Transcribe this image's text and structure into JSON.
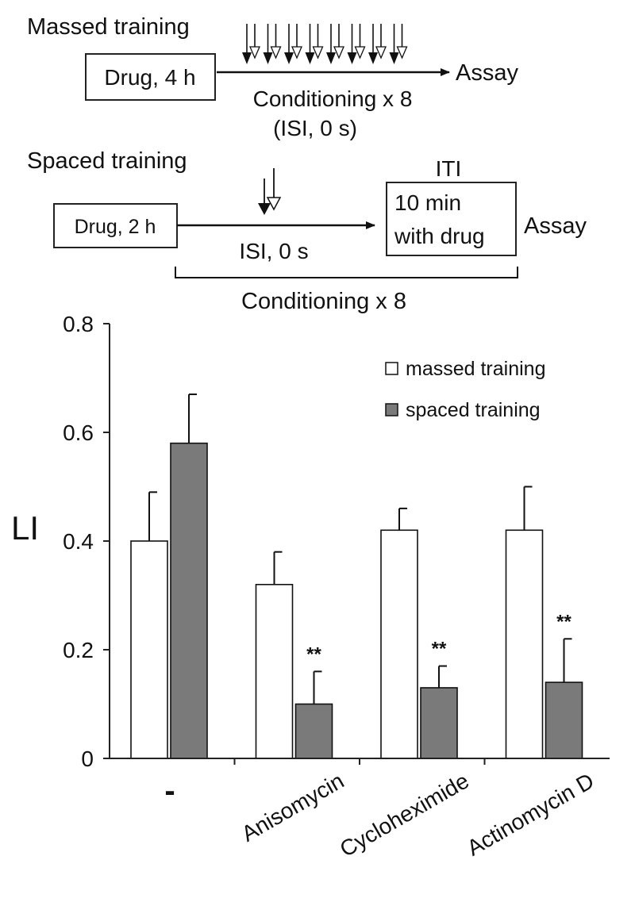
{
  "schematic": {
    "massed": {
      "title": "Massed training",
      "drug_box": "Drug, 4 h",
      "assay": "Assay",
      "conditioning": "Conditioning x 8",
      "isi": "(ISI, 0 s)",
      "pairs": 8
    },
    "spaced": {
      "title": "Spaced training",
      "drug_box": "Drug, 2 h",
      "isi": "ISI, 0 s",
      "iti_label": "ITI",
      "iti_box_line1": "10 min",
      "iti_box_line2": "with drug",
      "assay": "Assay",
      "conditioning": "Conditioning x 8"
    }
  },
  "chart_data": {
    "type": "bar",
    "title": "",
    "xlabel": "",
    "ylabel": "LI",
    "ylim": [
      0,
      0.8
    ],
    "yticks": [
      0,
      0.2,
      0.4,
      0.6,
      0.8
    ],
    "ytick_labels": [
      "0",
      "0.2",
      "0.4",
      "0.6",
      "0.8"
    ],
    "categories": [
      "-",
      "Anisomycin",
      "Cycloheximide",
      "Actinomycin D"
    ],
    "series": [
      {
        "name": "massed training",
        "color": "#ffffff",
        "values": [
          0.4,
          0.32,
          0.42,
          0.42
        ],
        "errors": [
          0.09,
          0.06,
          0.04,
          0.08
        ]
      },
      {
        "name": "spaced training",
        "color": "#7a7a7a",
        "values": [
          0.58,
          0.1,
          0.13,
          0.14
        ],
        "errors": [
          0.09,
          0.06,
          0.04,
          0.08
        ]
      }
    ],
    "annotations": [
      "",
      "**",
      "**",
      "**"
    ],
    "legend": {
      "position": "top-right"
    }
  }
}
